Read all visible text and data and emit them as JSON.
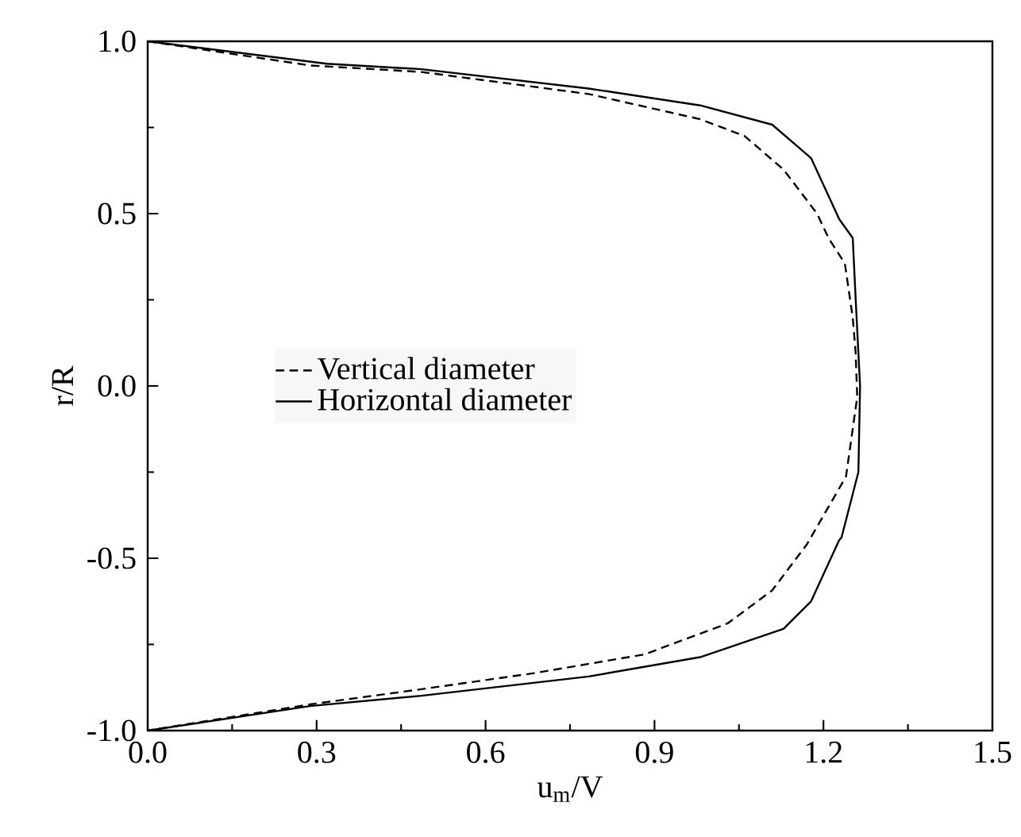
{
  "chart_data": {
    "type": "line",
    "xlabel": "u$_{m}$/V",
    "ylabel": "r/R",
    "xlim": [
      0,
      1.5
    ],
    "ylim": [
      -1,
      1
    ],
    "xticks": [
      {
        "value": 0,
        "label": "0.0"
      },
      0.3,
      0.6,
      0.9,
      1.2,
      1.5
    ],
    "yticks": [
      {
        "value": -1,
        "label": "-1.0"
      },
      -0.5,
      {
        "value": 0,
        "label": "0.0"
      },
      0.5,
      {
        "value": 1,
        "label": "1.0"
      }
    ],
    "legend": "left",
    "grid": false,
    "marker": "none",
    "series": [
      {
        "name": "Vertical diameter",
        "color": "#000000",
        "line_style": "dashed",
        "x": [
          0,
          0.288,
          0.486,
          0.783,
          0.981,
          1.06,
          1.129,
          1.189,
          1.209,
          1.238,
          1.252,
          1.257,
          1.26,
          1.24,
          1.17,
          1.109,
          1.03,
          0.882,
          0.684,
          0.486,
          0.288,
          0
        ],
        "values": [
          1,
          0.93,
          0.911,
          0.847,
          0.774,
          0.725,
          0.628,
          0.499,
          0.429,
          0.355,
          0.198,
          0.1,
          -0.032,
          -0.263,
          -0.461,
          -0.593,
          -0.689,
          -0.779,
          -0.834,
          -0.88,
          -0.924,
          -1
        ]
      },
      {
        "name": "Horizontal diameter",
        "color": "#000000",
        "line_style": "solid",
        "x": [
          0,
          0.318,
          0.486,
          0.783,
          0.981,
          1.109,
          1.178,
          1.228,
          1.252,
          1.257,
          1.265,
          1.262,
          1.232,
          1.228,
          1.178,
          1.129,
          0.981,
          0.783,
          0.486,
          0.288,
          0
        ],
        "values": [
          1,
          0.935,
          0.919,
          0.863,
          0.814,
          0.758,
          0.661,
          0.484,
          0.429,
          0.258,
          0,
          -0.25,
          -0.44,
          -0.447,
          -0.625,
          -0.705,
          -0.787,
          -0.843,
          -0.899,
          -0.929,
          -1
        ]
      }
    ]
  }
}
